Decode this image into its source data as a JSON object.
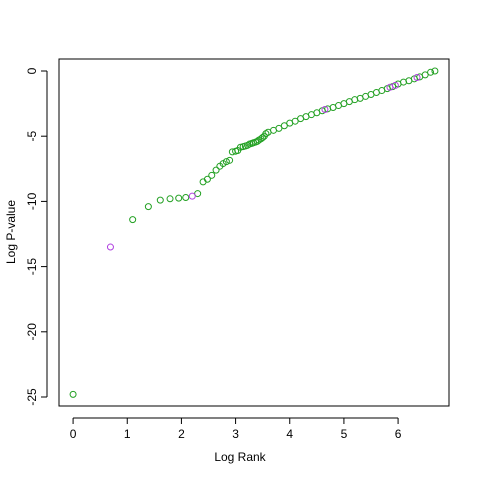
{
  "chart_data": {
    "type": "scatter",
    "xlabel": "Log Rank",
    "ylabel": "Log P-value",
    "xlim": [
      -0.26,
      6.94
    ],
    "ylim": [
      -25.69,
      0.92
    ],
    "xticks": [
      0,
      1,
      2,
      3,
      4,
      5,
      6
    ],
    "yticks": [
      0,
      -5,
      -10,
      -15,
      -20,
      -25
    ],
    "grid": false,
    "series": [
      {
        "color": "#22a022",
        "x": [
          0,
          1.1,
          1.39,
          1.61,
          1.79,
          1.95,
          2.08,
          2.3,
          2.4,
          2.48,
          2.56,
          2.64,
          2.71,
          2.77,
          2.83,
          2.89,
          2.94,
          3.0,
          3.04,
          3.09,
          3.14,
          3.18,
          3.22,
          3.26,
          3.3,
          3.33,
          3.37,
          3.4,
          3.43,
          3.47,
          3.5,
          3.53,
          3.56,
          3.6,
          3.7,
          3.8,
          3.9,
          4.0,
          4.1,
          4.2,
          4.3,
          4.4,
          4.5,
          4.6,
          4.7,
          4.8,
          4.9,
          5.0,
          5.1,
          5.2,
          5.3,
          5.4,
          5.5,
          5.6,
          5.7,
          5.8,
          5.9,
          6.0,
          6.1,
          6.2,
          6.3,
          6.4,
          6.5,
          6.6,
          6.68
        ],
        "y": [
          -24.8,
          -11.4,
          -10.4,
          -9.9,
          -9.8,
          -9.75,
          -9.7,
          -9.4,
          -8.5,
          -8.3,
          -8.0,
          -7.6,
          -7.3,
          -7.1,
          -6.95,
          -6.85,
          -6.2,
          -6.15,
          -6.1,
          -5.85,
          -5.8,
          -5.75,
          -5.7,
          -5.6,
          -5.55,
          -5.5,
          -5.45,
          -5.4,
          -5.3,
          -5.2,
          -5.1,
          -5.0,
          -4.8,
          -4.7,
          -4.55,
          -4.4,
          -4.2,
          -4.0,
          -3.85,
          -3.65,
          -3.5,
          -3.35,
          -3.2,
          -3.05,
          -2.9,
          -2.8,
          -2.65,
          -2.5,
          -2.35,
          -2.2,
          -2.1,
          -1.95,
          -1.8,
          -1.65,
          -1.5,
          -1.35,
          -1.2,
          -1.0,
          -0.85,
          -0.75,
          -0.6,
          -0.45,
          -0.3,
          -0.1,
          0
        ]
      },
      {
        "color": "#b040e0",
        "x": [
          0.69,
          2.2,
          4.65,
          5.85,
          5.95,
          6.35
        ],
        "y": [
          -13.5,
          -9.6,
          -2.95,
          -1.25,
          -1.1,
          -0.5
        ]
      }
    ]
  }
}
